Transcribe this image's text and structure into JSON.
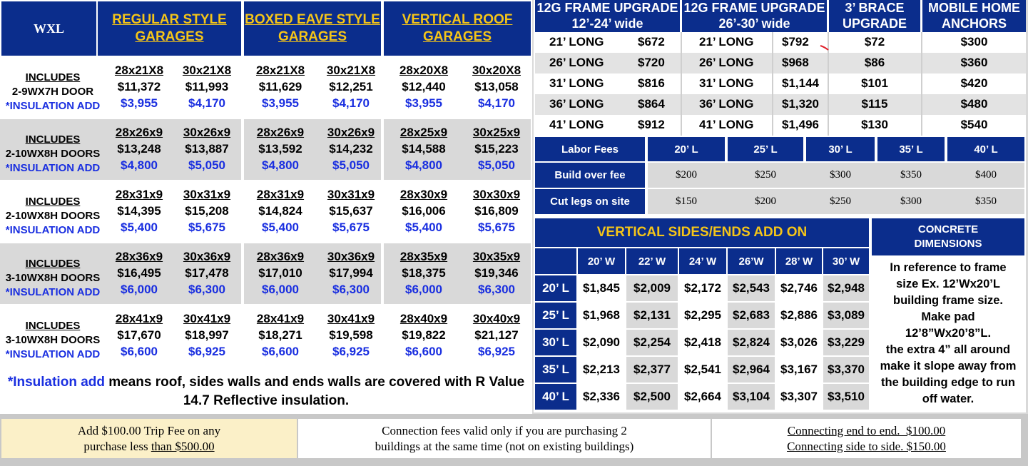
{
  "wxl_label": "WXL",
  "garage_headers": [
    {
      "line1": "REGULAR STYLE",
      "line2": "GARAGES"
    },
    {
      "line1": "BOXED EAVE STYLE",
      "line2": "GARAGES"
    },
    {
      "line1": "VERTICAL ROOF",
      "line2": "GARAGES"
    }
  ],
  "garage_rows": [
    {
      "includes": "INCLUDES",
      "door": "2-9WX7H DOOR",
      "insulation": "*INSULATION ADD",
      "cells": [
        {
          "size": "28x21X8",
          "price": "$11,372",
          "ins": "$3,955"
        },
        {
          "size": "30x21X8",
          "price": "$11,993",
          "ins": "$4,170"
        },
        {
          "size": "28x21X8",
          "price": "$11,629",
          "ins": "$3,955"
        },
        {
          "size": "30x21X8",
          "price": "$12,251",
          "ins": "$4,170"
        },
        {
          "size": "28x20X8",
          "price": "$12,440",
          "ins": "$3,955"
        },
        {
          "size": "30x20X8",
          "price": "$13,058",
          "ins": "$4,170"
        }
      ]
    },
    {
      "includes": "INCLUDES",
      "door": "2-10WX8H DOORS",
      "insulation": "*INSULATION ADD",
      "cells": [
        {
          "size": "28x26x9",
          "price": "$13,248",
          "ins": "$4,800"
        },
        {
          "size": "30x26x9",
          "price": "$13,887",
          "ins": "$5,050"
        },
        {
          "size": "28x26x9",
          "price": "$13,592",
          "ins": "$4,800"
        },
        {
          "size": "30x26x9",
          "price": "$14,232",
          "ins": "$5,050"
        },
        {
          "size": "28x25x9",
          "price": "$14,588",
          "ins": "$4,800"
        },
        {
          "size": "30x25x9",
          "price": "$15,223",
          "ins": "$5,050"
        }
      ]
    },
    {
      "includes": "INCLUDES",
      "door": "2-10WX8H DOORS",
      "insulation": "*INSULATION ADD",
      "cells": [
        {
          "size": "28x31x9",
          "price": "$14,395",
          "ins": "$5,400"
        },
        {
          "size": "30x31x9",
          "price": "$15,208",
          "ins": "$5,675"
        },
        {
          "size": "28x31x9",
          "price": "$14,824",
          "ins": "$5,400"
        },
        {
          "size": "30x31x9",
          "price": "$15,637",
          "ins": "$5,675"
        },
        {
          "size": "28x30x9",
          "price": "$16,006",
          "ins": "$5,400"
        },
        {
          "size": "30x30x9",
          "price": "$16,809",
          "ins": "$5,675"
        }
      ]
    },
    {
      "includes": "INCLUDES",
      "door": "3-10WX8H DOORS",
      "insulation": "*INSULATION ADD",
      "cells": [
        {
          "size": "28x36x9",
          "price": "$16,495",
          "ins": "$6,000"
        },
        {
          "size": "30x36x9",
          "price": "$17,478",
          "ins": "$6,300"
        },
        {
          "size": "28x36x9",
          "price": "$17,010",
          "ins": "$6,000"
        },
        {
          "size": "30x36x9",
          "price": "$17,994",
          "ins": "$6,300"
        },
        {
          "size": "28x35x9",
          "price": "$18,375",
          "ins": "$6,000"
        },
        {
          "size": "30x35x9",
          "price": "$19,346",
          "ins": "$6,300"
        }
      ]
    },
    {
      "includes": "INCLUDES",
      "door": "3-10WX8H DOORS",
      "insulation": "*INSULATION ADD",
      "cells": [
        {
          "size": "28x41x9",
          "price": "$17,670",
          "ins": "$6,600"
        },
        {
          "size": "30x41x9",
          "price": "$18,997",
          "ins": "$6,925"
        },
        {
          "size": "28x41x9",
          "price": "$18,271",
          "ins": "$6,600"
        },
        {
          "size": "30x41x9",
          "price": "$19,598",
          "ins": "$6,925"
        },
        {
          "size": "28x40x9",
          "price": "$19,822",
          "ins": "$6,600"
        },
        {
          "size": "30x40x9",
          "price": "$21,127",
          "ins": "$6,925"
        }
      ]
    }
  ],
  "insulation_note": {
    "highlight": "*Insulation add",
    "rest": " means roof, sides walls and ends walls are covered with R Value 14.7 Reflective insulation."
  },
  "upgrades": {
    "headers": [
      {
        "line1": "12G FRAME UPGRADE",
        "line2": "12’-24’ wide"
      },
      {
        "line1": "12G FRAME UPGRADE",
        "line2": "26’-30’ wide"
      },
      {
        "line1": "3’ BRACE",
        "line2": "UPGRADE"
      },
      {
        "line1": "MOBILE HOME",
        "line2": "ANCHORS"
      }
    ],
    "rows": [
      {
        "len_a": "21’ LONG",
        "price_a": "$672",
        "len_b": "21’ LONG",
        "price_b": "$792",
        "brace": "$72",
        "anchors": "$300"
      },
      {
        "len_a": "26’ LONG",
        "price_a": "$720",
        "len_b": "26’ LONG",
        "price_b": "$968",
        "brace": "$86",
        "anchors": "$360"
      },
      {
        "len_a": "31’ LONG",
        "price_a": "$816",
        "len_b": "31’ LONG",
        "price_b": "$1,144",
        "brace": "$101",
        "anchors": "$420"
      },
      {
        "len_a": "36’ LONG",
        "price_a": "$864",
        "len_b": "36’ LONG",
        "price_b": "$1,320",
        "brace": "$115",
        "anchors": "$480"
      },
      {
        "len_a": "41’ LONG",
        "price_a": "$912",
        "len_b": "41’ LONG",
        "price_b": "$1,496",
        "brace": "$130",
        "anchors": "$540"
      }
    ]
  },
  "labor": {
    "title": "Labor Fees",
    "columns": [
      "20’ L",
      "25’ L",
      "30’ L",
      "35’ L",
      "40’ L"
    ],
    "rows": [
      {
        "label": "Build over fee",
        "values": [
          "$200",
          "$250",
          "$300",
          "$350",
          "$400"
        ]
      },
      {
        "label": "Cut legs on site",
        "values": [
          "$150",
          "$200",
          "$250",
          "$300",
          "$350"
        ]
      }
    ]
  },
  "vertical_sides": {
    "title": "VERTICAL SIDES/ENDS ADD ON",
    "columns": [
      "20’ W",
      "22’ W",
      "24’ W",
      "26’W",
      "28’ W",
      "30’ W"
    ],
    "rows": [
      {
        "label": "20’ L",
        "values": [
          "$1,845",
          "$2,009",
          "$2,172",
          "$2,543",
          "$2,746",
          "$2,948"
        ]
      },
      {
        "label": "25’ L",
        "values": [
          "$1,968",
          "$2,131",
          "$2,295",
          "$2,683",
          "$2,886",
          "$3,089"
        ]
      },
      {
        "label": "30’ L",
        "values": [
          "$2,090",
          "$2,254",
          "$2,418",
          "$2,824",
          "$3,026",
          "$3,229"
        ]
      },
      {
        "label": "35’ L",
        "values": [
          "$2,213",
          "$2,377",
          "$2,541",
          "$2,964",
          "$3,167",
          "$3,370"
        ]
      },
      {
        "label": "40’ L",
        "values": [
          "$2,336",
          "$2,500",
          "$2,664",
          "$3,104",
          "$3,307",
          "$3,510"
        ]
      }
    ]
  },
  "concrete": {
    "title_line1": "CONCRETE",
    "title_line2": "DIMENSIONS",
    "lines": [
      "In reference to frame",
      "size Ex. 12’Wx20’L",
      "building frame size.",
      "Make pad",
      "12’8”Wx20’8”L.",
      "the extra 4” all around",
      "make it slope away from",
      "the building edge to run",
      "off water."
    ]
  },
  "footer": {
    "trip_fee": {
      "line1": "Add $100.00 Trip Fee on any",
      "line2_a": "purchase less ",
      "line2_b": "than $500.00"
    },
    "connection": {
      "line1": "Connection fees valid only if you are purchasing 2",
      "line2": "buildings at the same time (not on existing buildings)"
    },
    "connecting": {
      "line1": "Connecting end to end.  $100.00",
      "line2": "Connecting side to side. $150.00"
    }
  },
  "colors": {
    "navy": "#0b2d8c",
    "yellow": "#f5c518",
    "blue_text": "#1a2fe0",
    "gray_row": "#d9d9d9",
    "footer_yellow": "#fbf0c8",
    "red_mark": "#e0202a"
  }
}
